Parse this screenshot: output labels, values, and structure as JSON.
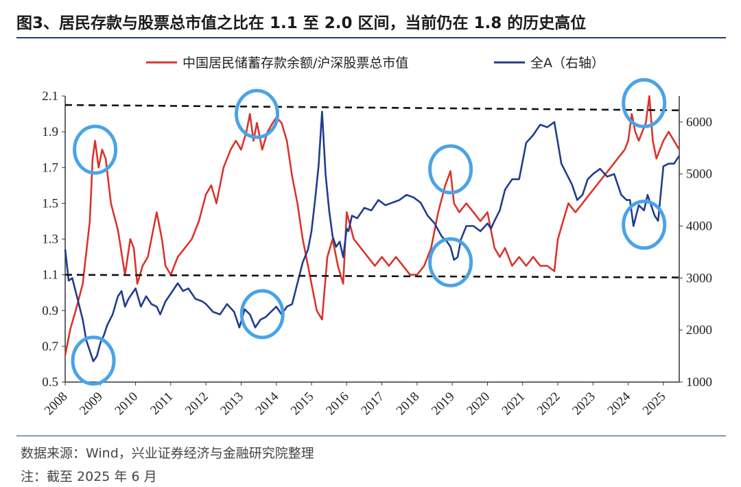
{
  "title": "图3、居民存款与股票总市值之比在 1.1 至 2.0 区间，当前仍在 1.8 的历史高位",
  "source": "数据来源：Wind，兴业证券经济与金融研究院整理",
  "note": "注：截至 2025 年 6 月",
  "chart_data": {
    "type": "line",
    "x_axis": {
      "ticks": [
        "2008",
        "2009",
        "2010",
        "2011",
        "2012",
        "2013",
        "2014",
        "2015",
        "2016",
        "2017",
        "2018",
        "2019",
        "2020",
        "2021",
        "2022",
        "2023",
        "2024",
        "2025"
      ],
      "range": [
        2008.0,
        2025.45
      ]
    },
    "y_left": {
      "range": [
        0.5,
        2.1
      ],
      "ticks": [
        "0.5",
        "0.7",
        "0.9",
        "1.1",
        "1.3",
        "1.5",
        "1.7",
        "1.9",
        "2.1"
      ]
    },
    "y_right": {
      "range": [
        1000,
        6500
      ],
      "ticks": [
        "1000",
        "2000",
        "3000",
        "4000",
        "5000",
        "6000"
      ]
    },
    "legend_position": "top-center",
    "grid": false,
    "series": [
      {
        "name": "中国居民储蓄存款余额/沪深股票总市值",
        "axis": "left",
        "color": "#d9342b",
        "x": [
          2008.0,
          2008.15,
          2008.3,
          2008.5,
          2008.7,
          2008.78,
          2008.85,
          2008.95,
          2009.05,
          2009.15,
          2009.3,
          2009.5,
          2009.7,
          2009.85,
          2009.95,
          2010.05,
          2010.2,
          2010.35,
          2010.5,
          2010.6,
          2010.75,
          2010.85,
          2011.0,
          2011.2,
          2011.4,
          2011.6,
          2011.8,
          2012.0,
          2012.15,
          2012.3,
          2012.5,
          2012.7,
          2012.85,
          2013.0,
          2013.15,
          2013.25,
          2013.35,
          2013.45,
          2013.6,
          2013.75,
          2013.9,
          2014.0,
          2014.15,
          2014.3,
          2014.45,
          2014.6,
          2014.75,
          2014.9,
          2015.0,
          2015.15,
          2015.3,
          2015.45,
          2015.6,
          2015.75,
          2015.9,
          2016.0,
          2016.2,
          2016.4,
          2016.6,
          2016.8,
          2017.0,
          2017.2,
          2017.4,
          2017.6,
          2017.8,
          2018.0,
          2018.2,
          2018.4,
          2018.6,
          2018.8,
          2018.95,
          2019.05,
          2019.2,
          2019.4,
          2019.6,
          2019.8,
          2020.0,
          2020.1,
          2020.2,
          2020.35,
          2020.5,
          2020.7,
          2020.9,
          2021.1,
          2021.3,
          2021.5,
          2021.7,
          2021.9,
          2022.0,
          2022.15,
          2022.3,
          2022.5,
          2022.7,
          2022.9,
          2023.1,
          2023.3,
          2023.5,
          2023.7,
          2023.9,
          2024.0,
          2024.1,
          2024.2,
          2024.3,
          2024.4,
          2024.5,
          2024.6,
          2024.7,
          2024.8,
          2024.9,
          2025.0,
          2025.15,
          2025.3,
          2025.45
        ],
        "values": [
          0.65,
          0.8,
          0.9,
          1.05,
          1.4,
          1.75,
          1.85,
          1.7,
          1.8,
          1.75,
          1.5,
          1.35,
          1.1,
          1.3,
          1.25,
          1.05,
          1.15,
          1.2,
          1.35,
          1.45,
          1.3,
          1.15,
          1.1,
          1.2,
          1.25,
          1.3,
          1.4,
          1.55,
          1.6,
          1.5,
          1.7,
          1.8,
          1.85,
          1.8,
          1.9,
          2.0,
          1.85,
          1.95,
          1.8,
          1.9,
          1.95,
          1.98,
          1.95,
          1.85,
          1.65,
          1.5,
          1.3,
          1.15,
          1.05,
          0.9,
          0.85,
          1.2,
          1.3,
          1.15,
          1.05,
          1.45,
          1.3,
          1.25,
          1.2,
          1.15,
          1.2,
          1.15,
          1.2,
          1.15,
          1.1,
          1.1,
          1.15,
          1.25,
          1.45,
          1.6,
          1.68,
          1.5,
          1.45,
          1.5,
          1.45,
          1.4,
          1.45,
          1.35,
          1.25,
          1.2,
          1.25,
          1.15,
          1.2,
          1.15,
          1.2,
          1.15,
          1.15,
          1.12,
          1.3,
          1.4,
          1.5,
          1.45,
          1.5,
          1.55,
          1.6,
          1.65,
          1.7,
          1.75,
          1.8,
          1.85,
          2.0,
          1.9,
          1.85,
          1.9,
          1.95,
          2.1,
          1.85,
          1.75,
          1.8,
          1.85,
          1.9,
          1.85,
          1.8
        ]
      },
      {
        "name": "全A（右轴）",
        "axis": "right",
        "color": "#1f3c8e",
        "x": [
          2008.0,
          2008.1,
          2008.2,
          2008.35,
          2008.5,
          2008.6,
          2008.7,
          2008.8,
          2008.9,
          2009.0,
          2009.1,
          2009.2,
          2009.35,
          2009.5,
          2009.6,
          2009.7,
          2009.8,
          2009.9,
          2010.0,
          2010.15,
          2010.3,
          2010.45,
          2010.6,
          2010.7,
          2010.85,
          2011.0,
          2011.2,
          2011.35,
          2011.5,
          2011.7,
          2011.9,
          2012.0,
          2012.2,
          2012.4,
          2012.6,
          2012.8,
          2012.95,
          2013.1,
          2013.25,
          2013.4,
          2013.55,
          2013.7,
          2013.85,
          2014.0,
          2014.15,
          2014.3,
          2014.45,
          2014.6,
          2014.75,
          2014.9,
          2015.0,
          2015.1,
          2015.2,
          2015.3,
          2015.4,
          2015.5,
          2015.6,
          2015.7,
          2015.8,
          2015.9,
          2016.0,
          2016.05,
          2016.15,
          2016.3,
          2016.5,
          2016.7,
          2016.9,
          2017.1,
          2017.3,
          2017.5,
          2017.7,
          2017.9,
          2018.1,
          2018.3,
          2018.5,
          2018.7,
          2018.85,
          2018.95,
          2019.05,
          2019.15,
          2019.25,
          2019.4,
          2019.6,
          2019.8,
          2020.0,
          2020.1,
          2020.2,
          2020.35,
          2020.5,
          2020.7,
          2020.9,
          2021.1,
          2021.3,
          2021.5,
          2021.7,
          2021.9,
          2022.0,
          2022.1,
          2022.25,
          2022.4,
          2022.55,
          2022.7,
          2022.85,
          2023.0,
          2023.2,
          2023.4,
          2023.6,
          2023.8,
          2023.95,
          2024.05,
          2024.15,
          2024.3,
          2024.45,
          2024.55,
          2024.65,
          2024.75,
          2024.85,
          2025.0,
          2025.15,
          2025.3,
          2025.45
        ],
        "values": [
          3550,
          2950,
          3000,
          2600,
          2200,
          1800,
          1600,
          1400,
          1500,
          1750,
          1900,
          2100,
          2300,
          2650,
          2750,
          2450,
          2600,
          2700,
          2800,
          2450,
          2650,
          2500,
          2450,
          2300,
          2550,
          2700,
          2900,
          2750,
          2800,
          2600,
          2550,
          2500,
          2350,
          2300,
          2500,
          2350,
          2050,
          2400,
          2300,
          2050,
          2200,
          2250,
          2350,
          2450,
          2300,
          2450,
          2500,
          2900,
          3300,
          3550,
          3900,
          4500,
          5150,
          6200,
          5000,
          4300,
          3800,
          3600,
          3700,
          3400,
          3950,
          3900,
          4200,
          4150,
          4350,
          4300,
          4500,
          4400,
          4450,
          4500,
          4600,
          4550,
          4450,
          4200,
          4050,
          3800,
          3700,
          3600,
          3350,
          3400,
          3750,
          4000,
          4000,
          3900,
          4050,
          3950,
          4100,
          4300,
          4700,
          4900,
          4900,
          5600,
          5750,
          5950,
          5900,
          6000,
          5600,
          5200,
          5000,
          4800,
          4500,
          4600,
          4900,
          5000,
          5100,
          4950,
          5000,
          4600,
          4500,
          4500,
          4000,
          4400,
          4300,
          4600,
          4400,
          4200,
          4100,
          5150,
          5200,
          5200,
          5350
        ]
      }
    ],
    "annotations": {
      "reference_lines": [
        {
          "style": "dashed",
          "axis": "left",
          "x": [
            2008.0,
            2025.45
          ],
          "y": [
            2.05,
            2.02
          ]
        },
        {
          "style": "dashed",
          "axis": "left",
          "x": [
            2008.0,
            2025.45
          ],
          "y": [
            1.1,
            1.085
          ]
        }
      ],
      "circles": [
        {
          "axis": "left",
          "x": 2008.85,
          "y": 1.8
        },
        {
          "axis": "left",
          "x": 2008.8,
          "y": 0.62
        },
        {
          "axis": "left",
          "x": 2013.45,
          "y": 2.0
        },
        {
          "axis": "left",
          "x": 2013.6,
          "y": 0.88
        },
        {
          "axis": "left",
          "x": 2018.95,
          "y": 1.69
        },
        {
          "axis": "left",
          "x": 2018.95,
          "y": 1.17
        },
        {
          "axis": "left",
          "x": 2024.45,
          "y": 2.06
        },
        {
          "axis": "left",
          "x": 2024.45,
          "y": 1.38
        }
      ]
    }
  }
}
